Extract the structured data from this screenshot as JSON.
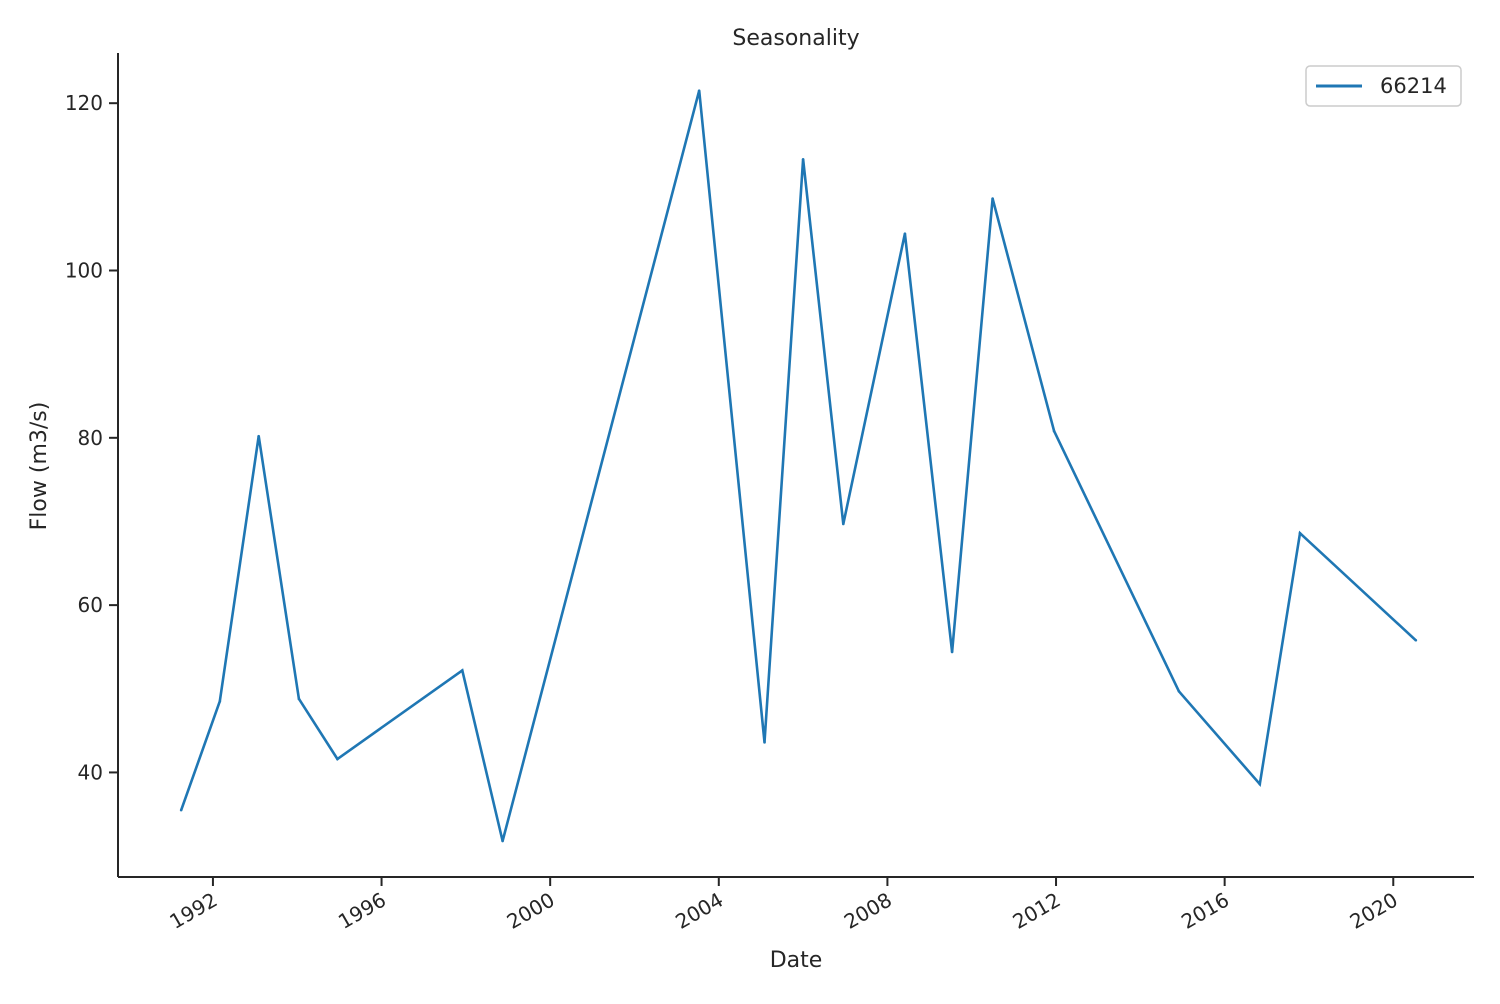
{
  "chart_data": {
    "type": "line",
    "title": "Seasonality",
    "xlabel": "Date",
    "ylabel": "Flow (m3/s)",
    "x_ticks": [
      "1992",
      "1996",
      "2000",
      "2004",
      "2008",
      "2012",
      "2016",
      "2020"
    ],
    "y_ticks": [
      "40",
      "60",
      "80",
      "100",
      "120"
    ],
    "xlim": [
      "1989-10-01",
      "2021-12-01"
    ],
    "ylim": [
      27.5,
      126.0
    ],
    "grid": false,
    "legend_position": "top-right",
    "series": [
      {
        "name": "66214",
        "color": "#1f77b4",
        "x": [
          "1991-04-01",
          "1992-03-01",
          "1993-02-01",
          "1994-01-15",
          "1994-12-15",
          "1997-12-01",
          "1998-11-15",
          "2003-07-15",
          "2005-02-01",
          "2006-01-01",
          "2006-12-15",
          "2008-06-01",
          "2009-07-15",
          "2010-07-01",
          "2011-12-15",
          "2014-12-01",
          "2016-11-01",
          "2017-10-15",
          "2020-07-15"
        ],
        "y": [
          35.5,
          48.5,
          80.2,
          48.8,
          41.6,
          52.2,
          31.8,
          121.5,
          43.6,
          113.3,
          69.7,
          104.4,
          54.4,
          108.6,
          80.8,
          49.7,
          38.6,
          68.6,
          55.8
        ]
      }
    ]
  }
}
